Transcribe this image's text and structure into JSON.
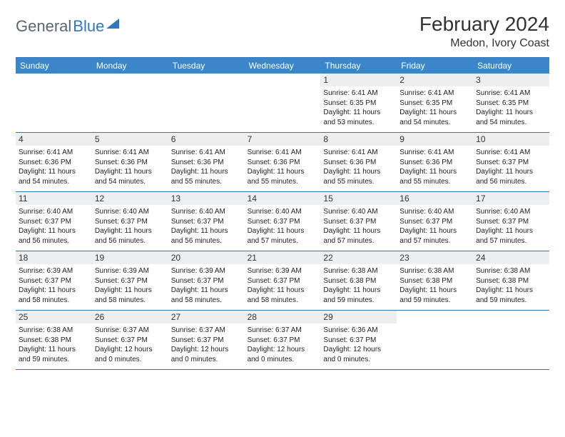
{
  "brand": {
    "word1": "General",
    "word2": "Blue"
  },
  "title": "February 2024",
  "location": "Medon, Ivory Coast",
  "colors": {
    "accent": "#3b86c8",
    "rule": "#2f78bf",
    "daybg": "#eceeef",
    "logo_gray": "#5a6770",
    "text": "#333333",
    "background": "#ffffff"
  },
  "day_names": [
    "Sunday",
    "Monday",
    "Tuesday",
    "Wednesday",
    "Thursday",
    "Friday",
    "Saturday"
  ],
  "weeks": [
    [
      {
        "n": "",
        "sr": "",
        "ss": "",
        "dl": ""
      },
      {
        "n": "",
        "sr": "",
        "ss": "",
        "dl": ""
      },
      {
        "n": "",
        "sr": "",
        "ss": "",
        "dl": ""
      },
      {
        "n": "",
        "sr": "",
        "ss": "",
        "dl": ""
      },
      {
        "n": "1",
        "sr": "Sunrise: 6:41 AM",
        "ss": "Sunset: 6:35 PM",
        "dl": "Daylight: 11 hours and 53 minutes."
      },
      {
        "n": "2",
        "sr": "Sunrise: 6:41 AM",
        "ss": "Sunset: 6:35 PM",
        "dl": "Daylight: 11 hours and 54 minutes."
      },
      {
        "n": "3",
        "sr": "Sunrise: 6:41 AM",
        "ss": "Sunset: 6:35 PM",
        "dl": "Daylight: 11 hours and 54 minutes."
      }
    ],
    [
      {
        "n": "4",
        "sr": "Sunrise: 6:41 AM",
        "ss": "Sunset: 6:36 PM",
        "dl": "Daylight: 11 hours and 54 minutes."
      },
      {
        "n": "5",
        "sr": "Sunrise: 6:41 AM",
        "ss": "Sunset: 6:36 PM",
        "dl": "Daylight: 11 hours and 54 minutes."
      },
      {
        "n": "6",
        "sr": "Sunrise: 6:41 AM",
        "ss": "Sunset: 6:36 PM",
        "dl": "Daylight: 11 hours and 55 minutes."
      },
      {
        "n": "7",
        "sr": "Sunrise: 6:41 AM",
        "ss": "Sunset: 6:36 PM",
        "dl": "Daylight: 11 hours and 55 minutes."
      },
      {
        "n": "8",
        "sr": "Sunrise: 6:41 AM",
        "ss": "Sunset: 6:36 PM",
        "dl": "Daylight: 11 hours and 55 minutes."
      },
      {
        "n": "9",
        "sr": "Sunrise: 6:41 AM",
        "ss": "Sunset: 6:36 PM",
        "dl": "Daylight: 11 hours and 55 minutes."
      },
      {
        "n": "10",
        "sr": "Sunrise: 6:41 AM",
        "ss": "Sunset: 6:37 PM",
        "dl": "Daylight: 11 hours and 56 minutes."
      }
    ],
    [
      {
        "n": "11",
        "sr": "Sunrise: 6:40 AM",
        "ss": "Sunset: 6:37 PM",
        "dl": "Daylight: 11 hours and 56 minutes."
      },
      {
        "n": "12",
        "sr": "Sunrise: 6:40 AM",
        "ss": "Sunset: 6:37 PM",
        "dl": "Daylight: 11 hours and 56 minutes."
      },
      {
        "n": "13",
        "sr": "Sunrise: 6:40 AM",
        "ss": "Sunset: 6:37 PM",
        "dl": "Daylight: 11 hours and 56 minutes."
      },
      {
        "n": "14",
        "sr": "Sunrise: 6:40 AM",
        "ss": "Sunset: 6:37 PM",
        "dl": "Daylight: 11 hours and 57 minutes."
      },
      {
        "n": "15",
        "sr": "Sunrise: 6:40 AM",
        "ss": "Sunset: 6:37 PM",
        "dl": "Daylight: 11 hours and 57 minutes."
      },
      {
        "n": "16",
        "sr": "Sunrise: 6:40 AM",
        "ss": "Sunset: 6:37 PM",
        "dl": "Daylight: 11 hours and 57 minutes."
      },
      {
        "n": "17",
        "sr": "Sunrise: 6:40 AM",
        "ss": "Sunset: 6:37 PM",
        "dl": "Daylight: 11 hours and 57 minutes."
      }
    ],
    [
      {
        "n": "18",
        "sr": "Sunrise: 6:39 AM",
        "ss": "Sunset: 6:37 PM",
        "dl": "Daylight: 11 hours and 58 minutes."
      },
      {
        "n": "19",
        "sr": "Sunrise: 6:39 AM",
        "ss": "Sunset: 6:37 PM",
        "dl": "Daylight: 11 hours and 58 minutes."
      },
      {
        "n": "20",
        "sr": "Sunrise: 6:39 AM",
        "ss": "Sunset: 6:37 PM",
        "dl": "Daylight: 11 hours and 58 minutes."
      },
      {
        "n": "21",
        "sr": "Sunrise: 6:39 AM",
        "ss": "Sunset: 6:37 PM",
        "dl": "Daylight: 11 hours and 58 minutes."
      },
      {
        "n": "22",
        "sr": "Sunrise: 6:38 AM",
        "ss": "Sunset: 6:38 PM",
        "dl": "Daylight: 11 hours and 59 minutes."
      },
      {
        "n": "23",
        "sr": "Sunrise: 6:38 AM",
        "ss": "Sunset: 6:38 PM",
        "dl": "Daylight: 11 hours and 59 minutes."
      },
      {
        "n": "24",
        "sr": "Sunrise: 6:38 AM",
        "ss": "Sunset: 6:38 PM",
        "dl": "Daylight: 11 hours and 59 minutes."
      }
    ],
    [
      {
        "n": "25",
        "sr": "Sunrise: 6:38 AM",
        "ss": "Sunset: 6:38 PM",
        "dl": "Daylight: 11 hours and 59 minutes."
      },
      {
        "n": "26",
        "sr": "Sunrise: 6:37 AM",
        "ss": "Sunset: 6:37 PM",
        "dl": "Daylight: 12 hours and 0 minutes."
      },
      {
        "n": "27",
        "sr": "Sunrise: 6:37 AM",
        "ss": "Sunset: 6:37 PM",
        "dl": "Daylight: 12 hours and 0 minutes."
      },
      {
        "n": "28",
        "sr": "Sunrise: 6:37 AM",
        "ss": "Sunset: 6:37 PM",
        "dl": "Daylight: 12 hours and 0 minutes."
      },
      {
        "n": "29",
        "sr": "Sunrise: 6:36 AM",
        "ss": "Sunset: 6:37 PM",
        "dl": "Daylight: 12 hours and 0 minutes."
      },
      {
        "n": "",
        "sr": "",
        "ss": "",
        "dl": ""
      },
      {
        "n": "",
        "sr": "",
        "ss": "",
        "dl": ""
      }
    ]
  ]
}
